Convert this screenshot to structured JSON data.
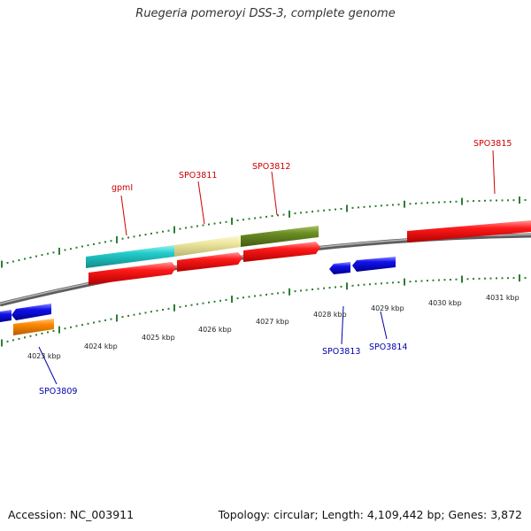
{
  "title": "Ruegeria pomeroyi DSS-3, complete genome",
  "footer": {
    "accession": "Accession: NC_003911",
    "summary": "Topology: circular; Length: 4,109,442 bp; Genes: 3,872"
  },
  "colors": {
    "backbone": "#888888",
    "tick": "#2e7d32",
    "label_upper": "#cc0000",
    "label_lower": "#0000aa",
    "cds_red": "#ff0000",
    "cds_blue": "#0000ee",
    "cyan": "#22cccc",
    "khaki": "#eee8a0",
    "olive": "#6b8e23",
    "orange": "#ff8800"
  },
  "ticks": [
    {
      "label": "4023 kbp"
    },
    {
      "label": "4024 kbp"
    },
    {
      "label": "4025 kbp"
    },
    {
      "label": "4026 kbp"
    },
    {
      "label": "4027 kbp"
    },
    {
      "label": "4028 kbp"
    },
    {
      "label": "4029 kbp"
    },
    {
      "label": "4030 kbp"
    },
    {
      "label": "4031 kbp"
    }
  ],
  "genes_upper": [
    {
      "name": "gpmI"
    },
    {
      "name": "SPO3811"
    },
    {
      "name": "SPO3812"
    },
    {
      "name": "SPO3815"
    }
  ],
  "genes_lower": [
    {
      "name": "SPO3809"
    },
    {
      "name": "SPO3813"
    },
    {
      "name": "SPO3814"
    }
  ]
}
